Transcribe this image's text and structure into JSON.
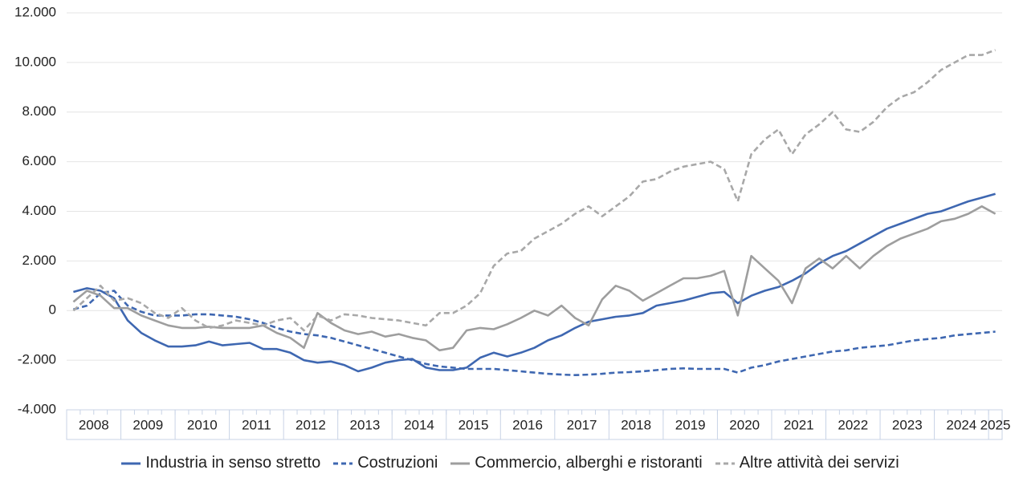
{
  "chart_data": {
    "type": "line",
    "categories": [
      "2008",
      null,
      null,
      null,
      "2009",
      null,
      null,
      null,
      "2010",
      null,
      null,
      null,
      "2011",
      null,
      null,
      null,
      "2012",
      null,
      null,
      null,
      "2013",
      null,
      null,
      null,
      "2014",
      null,
      null,
      null,
      "2015",
      null,
      null,
      null,
      "2016",
      null,
      null,
      null,
      "2017",
      null,
      null,
      null,
      "2018",
      null,
      null,
      null,
      "2019",
      null,
      null,
      null,
      "2020",
      null,
      null,
      null,
      "2021",
      null,
      null,
      null,
      "2022",
      null,
      null,
      null,
      "2023",
      null,
      null,
      null,
      "2024",
      null,
      null,
      null,
      "2025"
    ],
    "ylim": [
      -4000,
      12000
    ],
    "yticks": [
      {
        "value": -4000,
        "label": "-4.000"
      },
      {
        "value": -2000,
        "label": "-2.000"
      },
      0,
      {
        "value": 2000,
        "label": "2.000"
      },
      {
        "value": 4000,
        "label": "4.000"
      },
      {
        "value": 6000,
        "label": "6.000"
      },
      {
        "value": 8000,
        "label": "8.000"
      },
      {
        "value": 10000,
        "label": "10.000"
      },
      {
        "value": 12000,
        "label": "12.000"
      }
    ],
    "grid": true,
    "legend": "bottom",
    "series": [
      {
        "name": "Industria in senso stretto",
        "color": "#3e67b1",
        "line_style": "solid",
        "values": [
          750,
          900,
          800,
          500,
          -400,
          -900,
          -1200,
          -1450,
          -1450,
          -1400,
          -1250,
          -1400,
          -1350,
          -1300,
          -1550,
          -1550,
          -1700,
          -2000,
          -2100,
          -2050,
          -2200,
          -2450,
          -2300,
          -2100,
          -2000,
          -1950,
          -2300,
          -2400,
          -2400,
          -2300,
          -1900,
          -1700,
          -1850,
          -1700,
          -1500,
          -1200,
          -1000,
          -700,
          -450,
          -350,
          -250,
          -200,
          -100,
          200,
          300,
          400,
          550,
          700,
          750,
          300,
          600,
          800,
          950,
          1200,
          1500,
          1900,
          2200,
          2400,
          2700,
          3000,
          3300,
          3500,
          3700,
          3900,
          4000,
          4200,
          4400,
          4550,
          4700
        ]
      },
      {
        "name": "Costruzioni",
        "color": "#3e67b1",
        "line_style": "dashed",
        "values": [
          50,
          200,
          700,
          800,
          200,
          -50,
          -200,
          -200,
          -200,
          -150,
          -150,
          -200,
          -250,
          -350,
          -500,
          -700,
          -850,
          -950,
          -1000,
          -1100,
          -1250,
          -1400,
          -1550,
          -1700,
          -1850,
          -2000,
          -2150,
          -2250,
          -2300,
          -2350,
          -2350,
          -2350,
          -2400,
          -2450,
          -2500,
          -2550,
          -2580,
          -2600,
          -2580,
          -2550,
          -2500,
          -2480,
          -2450,
          -2400,
          -2350,
          -2330,
          -2350,
          -2350,
          -2350,
          -2500,
          -2300,
          -2200,
          -2050,
          -1950,
          -1850,
          -1750,
          -1650,
          -1600,
          -1500,
          -1450,
          -1400,
          -1300,
          -1200,
          -1150,
          -1100,
          -1000,
          -950,
          -900,
          -850
        ]
      },
      {
        "name": "Commercio, alberghi e ristoranti",
        "color": "#9e9e9e",
        "line_style": "solid",
        "values": [
          350,
          800,
          600,
          100,
          100,
          -200,
          -400,
          -600,
          -700,
          -700,
          -650,
          -700,
          -700,
          -700,
          -600,
          -900,
          -1100,
          -1500,
          -100,
          -500,
          -800,
          -950,
          -850,
          -1050,
          -950,
          -1100,
          -1200,
          -1600,
          -1500,
          -800,
          -700,
          -750,
          -550,
          -300,
          0,
          -200,
          200,
          -300,
          -600,
          450,
          1000,
          800,
          400,
          700,
          1000,
          1300,
          1300,
          1400,
          1600,
          -200,
          2200,
          1700,
          1200,
          300,
          1700,
          2100,
          1700,
          2200,
          1700,
          2200,
          2600,
          2900,
          3100,
          3300,
          3600,
          3700,
          3900,
          4200,
          3900
        ]
      },
      {
        "name": "Altre attività dei servizi",
        "color": "#a8a8a8",
        "line_style": "dashed",
        "values": [
          0,
          500,
          1000,
          400,
          500,
          300,
          -100,
          -300,
          100,
          -400,
          -700,
          -600,
          -400,
          -500,
          -600,
          -400,
          -300,
          -800,
          -200,
          -400,
          -150,
          -200,
          -300,
          -350,
          -400,
          -500,
          -600,
          -100,
          -100,
          200,
          700,
          1800,
          2300,
          2400,
          2900,
          3200,
          3500,
          3900,
          4200,
          3800,
          4200,
          4600,
          5200,
          5300,
          5600,
          5800,
          5900,
          6000,
          5700,
          4400,
          6300,
          6900,
          7300,
          6300,
          7100,
          7500,
          8000,
          7300,
          7200,
          7600,
          8200,
          8600,
          8800,
          9200,
          9700,
          10000,
          10300,
          10300,
          10500
        ]
      }
    ]
  }
}
